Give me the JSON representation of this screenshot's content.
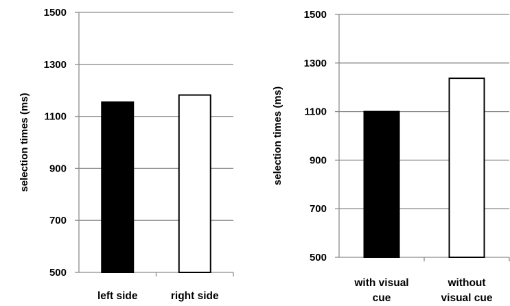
{
  "chart_data": [
    {
      "type": "bar",
      "title": "",
      "xlabel": "",
      "ylabel": "selection times (ms)",
      "ylim": [
        500,
        1500
      ],
      "yticks": [
        500,
        700,
        900,
        1100,
        1300,
        1500
      ],
      "grid": true,
      "categories": [
        [
          "left side"
        ],
        [
          "right side"
        ]
      ],
      "values": [
        1155,
        1182
      ],
      "bar_colors": [
        "#000000",
        "#ffffff"
      ]
    },
    {
      "type": "bar",
      "title": "",
      "xlabel": "",
      "ylabel": "selection times (ms)",
      "ylim": [
        500,
        1500
      ],
      "yticks": [
        500,
        700,
        900,
        1100,
        1300,
        1500
      ],
      "grid": true,
      "categories": [
        [
          "with visual",
          "cue"
        ],
        [
          "without",
          "visual cue"
        ]
      ],
      "values": [
        1100,
        1237
      ],
      "bar_colors": [
        "#000000",
        "#ffffff"
      ]
    }
  ]
}
